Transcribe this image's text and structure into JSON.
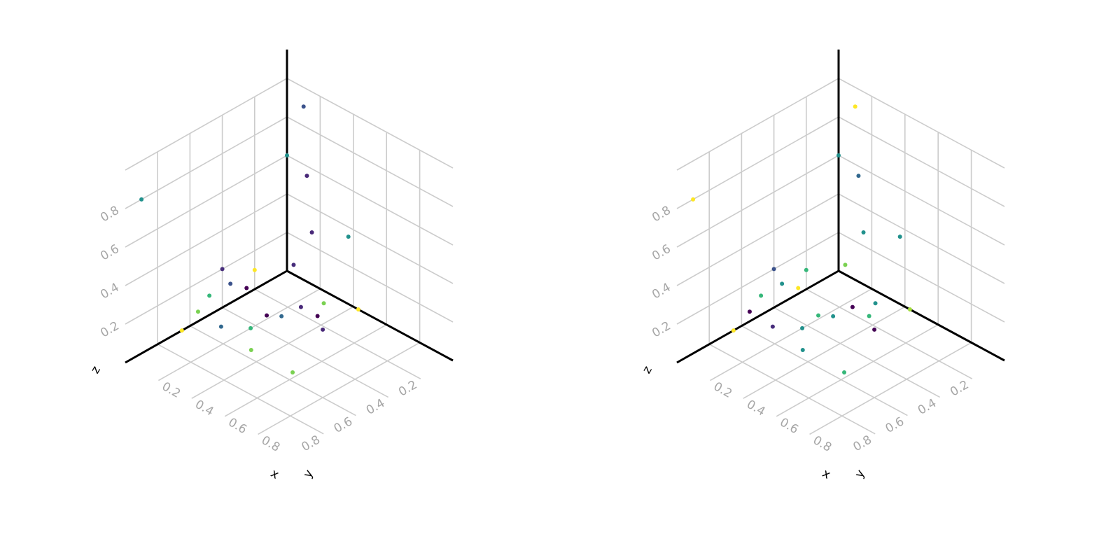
{
  "chart_data": [
    {
      "type": "scatter",
      "title": "",
      "xlabel": "x",
      "ylabel": "y",
      "zlabel": "z",
      "xlim": [
        0,
        1
      ],
      "ylim": [
        0,
        1
      ],
      "zlim": [
        0,
        1
      ],
      "xticks": [
        "0.2",
        "0.4",
        "0.6",
        "0.8"
      ],
      "yticks": [
        "0.2",
        "0.4",
        "0.6",
        "0.8"
      ],
      "zticks": [
        "0.2",
        "0.4",
        "0.6",
        "0.8"
      ],
      "grid": true,
      "colormap": "viridis",
      "points": [
        {
          "x": 0.1,
          "y": 0.0,
          "z": 0.9,
          "color": "#3b528b"
        },
        {
          "x": 0.0,
          "y": 0.0,
          "z": 0.6,
          "color": "#21918c"
        },
        {
          "x": 0.12,
          "y": 0.0,
          "z": 0.55,
          "color": "#482878"
        },
        {
          "x": 0.15,
          "y": 0.0,
          "z": 0.27,
          "color": "#482878"
        },
        {
          "x": 0.04,
          "y": 0.0,
          "z": 0.05,
          "color": "#472d7b"
        },
        {
          "x": 0.37,
          "y": 0.0,
          "z": 0.35,
          "color": "#21918c"
        },
        {
          "x": 0.43,
          "y": 0.0,
          "z": 0.0,
          "color": "#fde725"
        },
        {
          "x": 0.0,
          "y": 0.9,
          "z": 0.8,
          "color": "#21918c"
        },
        {
          "x": 0.0,
          "y": 0.65,
          "z": 0.0,
          "color": "#fde725"
        },
        {
          "x": 0.0,
          "y": 0.2,
          "z": 0.1,
          "color": "#fde725"
        },
        {
          "x": 0.0,
          "y": 0.4,
          "z": 0.2,
          "color": "#472d7b"
        },
        {
          "x": 0.0,
          "y": 0.35,
          "z": 0.1,
          "color": "#3b528b"
        },
        {
          "x": 0.0,
          "y": 0.25,
          "z": 0.03,
          "color": "#440154"
        },
        {
          "x": 0.0,
          "y": 0.48,
          "z": 0.1,
          "color": "#35b779"
        },
        {
          "x": 0.0,
          "y": 0.55,
          "z": 0.05,
          "color": "#7ad151"
        },
        {
          "x": 0.18,
          "y": 0.31,
          "z": 0.0,
          "color": "#440154"
        },
        {
          "x": 0.2,
          "y": 0.43,
          "z": 0.0,
          "color": "#35b779"
        },
        {
          "x": 0.1,
          "y": 0.51,
          "z": 0.0,
          "color": "#31688e"
        },
        {
          "x": 0.32,
          "y": 0.55,
          "z": 0.0,
          "color": "#7ad151"
        },
        {
          "x": 0.24,
          "y": 0.16,
          "z": 0.0,
          "color": "#482878"
        },
        {
          "x": 0.29,
          "y": 0.07,
          "z": 0.0,
          "color": "#7ad151"
        },
        {
          "x": 0.34,
          "y": 0.16,
          "z": 0.0,
          "color": "#440154"
        },
        {
          "x": 0.23,
          "y": 0.27,
          "z": 0.0,
          "color": "#31688e"
        },
        {
          "x": 0.43,
          "y": 0.22,
          "z": 0.0,
          "color": "#482878"
        },
        {
          "x": 0.57,
          "y": 0.55,
          "z": 0.0,
          "color": "#7ad151"
        }
      ]
    },
    {
      "type": "scatter",
      "title": "",
      "xlabel": "x",
      "ylabel": "y",
      "zlabel": "z",
      "xlim": [
        0,
        1
      ],
      "ylim": [
        0,
        1
      ],
      "zlim": [
        0,
        1
      ],
      "xticks": [
        "0.2",
        "0.4",
        "0.6",
        "0.8"
      ],
      "yticks": [
        "0.2",
        "0.4",
        "0.6",
        "0.8"
      ],
      "zticks": [
        "0.2",
        "0.4",
        "0.6",
        "0.8"
      ],
      "grid": true,
      "colormap": "viridis",
      "points": [
        {
          "x": 0.1,
          "y": 0.0,
          "z": 0.9,
          "color": "#fde725"
        },
        {
          "x": 0.0,
          "y": 0.0,
          "z": 0.6,
          "color": "#21918c"
        },
        {
          "x": 0.12,
          "y": 0.0,
          "z": 0.55,
          "color": "#31688e"
        },
        {
          "x": 0.15,
          "y": 0.0,
          "z": 0.27,
          "color": "#21918c"
        },
        {
          "x": 0.04,
          "y": 0.0,
          "z": 0.05,
          "color": "#7ad151"
        },
        {
          "x": 0.37,
          "y": 0.0,
          "z": 0.35,
          "color": "#21918c"
        },
        {
          "x": 0.43,
          "y": 0.0,
          "z": 0.0,
          "color": "#a0da39"
        },
        {
          "x": 0.0,
          "y": 0.9,
          "z": 0.8,
          "color": "#fde725"
        },
        {
          "x": 0.0,
          "y": 0.65,
          "z": 0.0,
          "color": "#fde725"
        },
        {
          "x": 0.0,
          "y": 0.2,
          "z": 0.1,
          "color": "#35b779"
        },
        {
          "x": 0.0,
          "y": 0.4,
          "z": 0.2,
          "color": "#3b528b"
        },
        {
          "x": 0.0,
          "y": 0.35,
          "z": 0.1,
          "color": "#21918c"
        },
        {
          "x": 0.0,
          "y": 0.25,
          "z": 0.03,
          "color": "#fde725"
        },
        {
          "x": 0.0,
          "y": 0.48,
          "z": 0.1,
          "color": "#35b779"
        },
        {
          "x": 0.0,
          "y": 0.55,
          "z": 0.05,
          "color": "#440154"
        },
        {
          "x": 0.18,
          "y": 0.31,
          "z": 0.0,
          "color": "#35b779"
        },
        {
          "x": 0.2,
          "y": 0.43,
          "z": 0.0,
          "color": "#21918c"
        },
        {
          "x": 0.1,
          "y": 0.51,
          "z": 0.0,
          "color": "#472d7b"
        },
        {
          "x": 0.32,
          "y": 0.55,
          "z": 0.0,
          "color": "#21918c"
        },
        {
          "x": 0.24,
          "y": 0.16,
          "z": 0.0,
          "color": "#440154"
        },
        {
          "x": 0.29,
          "y": 0.07,
          "z": 0.0,
          "color": "#21918c"
        },
        {
          "x": 0.34,
          "y": 0.16,
          "z": 0.0,
          "color": "#35b779"
        },
        {
          "x": 0.23,
          "y": 0.27,
          "z": 0.0,
          "color": "#21918c"
        },
        {
          "x": 0.43,
          "y": 0.22,
          "z": 0.0,
          "color": "#440154"
        },
        {
          "x": 0.57,
          "y": 0.55,
          "z": 0.0,
          "color": "#35b779"
        }
      ]
    }
  ]
}
